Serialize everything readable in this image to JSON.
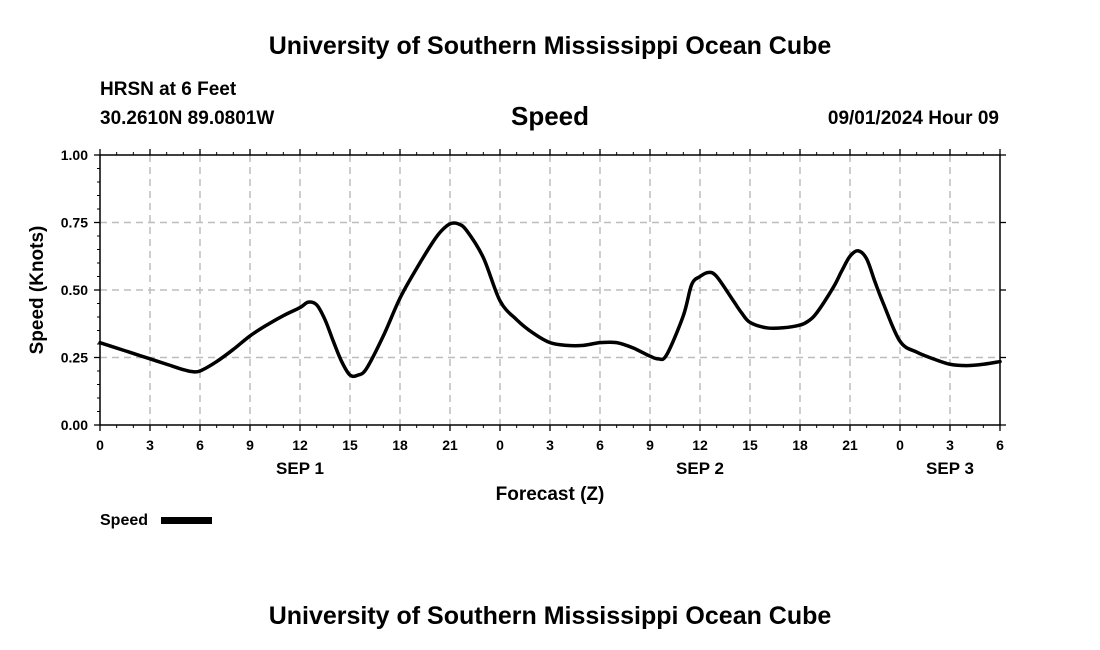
{
  "header": {
    "title": "University of Southern Mississippi Ocean Cube",
    "station": "HRSN at 6 Feet",
    "coords": "30.2610N  89.0801W",
    "datetime": "09/01/2024 Hour 09"
  },
  "footer": {
    "title": "University of Southern Mississippi Ocean Cube"
  },
  "legend": {
    "label": "Speed",
    "color": "#000000"
  },
  "chart_data": {
    "type": "line",
    "title": "Speed",
    "xlabel": "Forecast (Z)",
    "ylabel": "Speed (Knots)",
    "ylim": [
      0,
      1
    ],
    "y_ticks": [
      "0.00",
      "0.25",
      "0.50",
      "0.75",
      "1.00"
    ],
    "x_unit": "hours UTC since 2024-09-01 00Z",
    "xlim": [
      0,
      54
    ],
    "x_tick_labels": [
      "0",
      "3",
      "6",
      "9",
      "12",
      "15",
      "18",
      "21",
      "0",
      "3",
      "6",
      "9",
      "12",
      "15",
      "18",
      "21",
      "0",
      "3",
      "6"
    ],
    "date_labels": [
      {
        "hour": 12,
        "label": "SEP 1"
      },
      {
        "hour": 36,
        "label": "SEP 2"
      },
      {
        "hour": 51,
        "label": "SEP 3"
      }
    ],
    "grid": true,
    "legend_position": "bottom-left",
    "series": [
      {
        "name": "Speed",
        "color": "#000000",
        "x": [
          0,
          1,
          2,
          3,
          4,
          5,
          5.5,
          6,
          7,
          8,
          9,
          10,
          11,
          12,
          12.5,
          13,
          13.5,
          14,
          14.5,
          15,
          15.5,
          16,
          17,
          18,
          19,
          20,
          20.5,
          21,
          21.5,
          22,
          23,
          24,
          25,
          26,
          27,
          28,
          29,
          30,
          31,
          32,
          33,
          33.5,
          34,
          35,
          35.5,
          36,
          36.5,
          37,
          38,
          38.5,
          39,
          40,
          41,
          42,
          42.5,
          43,
          44,
          44.5,
          45,
          45.5,
          46,
          46.5,
          47,
          48,
          49,
          50,
          51,
          52,
          53,
          54
        ],
        "values": [
          0.305,
          0.285,
          0.265,
          0.245,
          0.225,
          0.205,
          0.198,
          0.2,
          0.235,
          0.28,
          0.33,
          0.37,
          0.405,
          0.435,
          0.455,
          0.445,
          0.39,
          0.31,
          0.235,
          0.185,
          0.185,
          0.21,
          0.33,
          0.47,
          0.58,
          0.68,
          0.72,
          0.745,
          0.745,
          0.72,
          0.62,
          0.46,
          0.39,
          0.34,
          0.305,
          0.295,
          0.295,
          0.305,
          0.305,
          0.285,
          0.255,
          0.245,
          0.26,
          0.405,
          0.52,
          0.55,
          0.565,
          0.55,
          0.46,
          0.415,
          0.38,
          0.36,
          0.36,
          0.37,
          0.385,
          0.415,
          0.51,
          0.57,
          0.625,
          0.645,
          0.615,
          0.53,
          0.45,
          0.31,
          0.27,
          0.245,
          0.225,
          0.22,
          0.225,
          0.235
        ]
      }
    ]
  }
}
